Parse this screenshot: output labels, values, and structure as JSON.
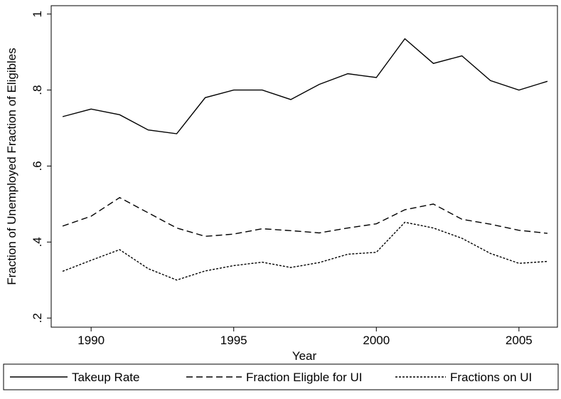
{
  "chart_data": {
    "type": "line",
    "xlabel": "Year",
    "ylabel": "Fraction of Unemployed Fraction of Eligibles",
    "x": [
      1989,
      1990,
      1991,
      1992,
      1993,
      1994,
      1995,
      1996,
      1997,
      1998,
      1999,
      2000,
      2001,
      2002,
      2003,
      2004,
      2005,
      2006
    ],
    "series": [
      {
        "name": "Takeup Rate",
        "color": "#000000",
        "line_style": "solid",
        "values": [
          0.73,
          0.75,
          0.735,
          0.695,
          0.685,
          0.78,
          0.8,
          0.8,
          0.775,
          0.815,
          0.843,
          0.833,
          0.935,
          0.87,
          0.89,
          0.825,
          0.8,
          0.823
        ]
      },
      {
        "name": "Fraction Eligble for UI",
        "color": "#000000",
        "line_style": "longdash",
        "values": [
          0.442,
          0.468,
          0.517,
          0.477,
          0.437,
          0.415,
          0.421,
          0.435,
          0.43,
          0.424,
          0.437,
          0.448,
          0.485,
          0.5,
          0.46,
          0.447,
          0.431,
          0.423
        ]
      },
      {
        "name": "Fractions on UI",
        "color": "#000000",
        "line_style": "shortdash",
        "values": [
          0.323,
          0.352,
          0.38,
          0.33,
          0.3,
          0.324,
          0.338,
          0.347,
          0.333,
          0.346,
          0.368,
          0.373,
          0.452,
          0.437,
          0.41,
          0.37,
          0.344,
          0.349
        ]
      }
    ],
    "xlim": [
      1988.6,
      2006.35
    ],
    "xticks": [
      1990,
      1995,
      2000,
      2005
    ],
    "ylim": [
      0.176,
      1.022
    ],
    "yticks": [
      {
        "value": 0.2,
        "label": ".2"
      },
      {
        "value": 0.4,
        "label": ".4"
      },
      {
        "value": 0.6,
        "label": ".6"
      },
      {
        "value": 0.8,
        "label": ".8"
      },
      1
    ],
    "grid": false,
    "legend": "bottom"
  }
}
